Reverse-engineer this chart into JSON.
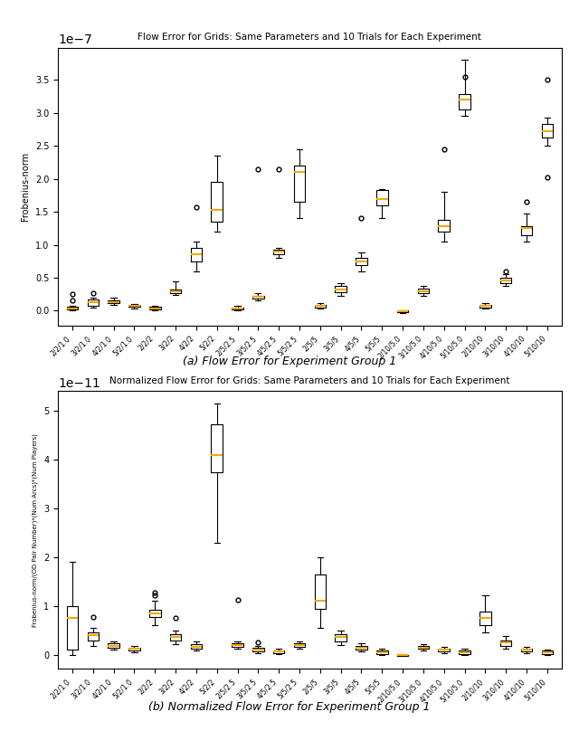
{
  "title1": "Flow Error for Grids: Same Parameters and 10 Trials for Each Experiment",
  "title2": "Normalized Flow Error for Grids: Same Parameters and 10 Trials for Each Experiment",
  "ylabel1": "Frobenius-norm",
  "ylabel2": "Frobenius-norm/(OD Pair Number)*(Num Arcs)*(Num Players)",
  "caption1": "(a) Flow Error for Experiment Group 1",
  "caption2": "(b) Normalized Flow Error for Experiment Group 1",
  "scale1": 1e-07,
  "scale2": 1e-11,
  "xlabels": [
    "2/2/1.0",
    "3/2/1.0",
    "4/2/1.0",
    "5/2/1.0",
    "2/2/2",
    "3/2/2",
    "4/2/2",
    "5/2/2",
    "2/5/2.5",
    "3/5/2.5",
    "4/5/2.5",
    "5/5/2.5",
    "2/5/5",
    "3/5/5",
    "4/5/5",
    "5/5/5",
    "2/10/5.0",
    "3/10/5.0",
    "4/10/5.0",
    "5/10/5.0",
    "2/10/10",
    "3/10/10",
    "4/10/10",
    "5/10/10"
  ],
  "plot1_data": [
    {
      "med": 0.03,
      "q1": 0.02,
      "q3": 0.06,
      "whislo": 0.01,
      "whishi": 0.08,
      "fliers": [
        0.15,
        0.25
      ]
    },
    {
      "med": 0.13,
      "q1": 0.08,
      "q3": 0.17,
      "whislo": 0.05,
      "whishi": 0.2,
      "fliers": [
        0.27
      ]
    },
    {
      "med": 0.13,
      "q1": 0.11,
      "q3": 0.15,
      "whislo": 0.09,
      "whishi": 0.2,
      "fliers": []
    },
    {
      "med": 0.07,
      "q1": 0.06,
      "q3": 0.08,
      "whislo": 0.04,
      "whishi": 0.1,
      "fliers": []
    },
    {
      "med": 0.04,
      "q1": 0.02,
      "q3": 0.06,
      "whislo": 0.01,
      "whishi": 0.08,
      "fliers": []
    },
    {
      "med": 0.29,
      "q1": 0.27,
      "q3": 0.32,
      "whislo": 0.24,
      "whishi": 0.45,
      "fliers": []
    },
    {
      "med": 0.85,
      "q1": 0.75,
      "q3": 0.95,
      "whislo": 0.6,
      "whishi": 1.05,
      "fliers": [
        1.57
      ]
    },
    {
      "med": 1.53,
      "q1": 1.35,
      "q3": 1.95,
      "whislo": 1.2,
      "whishi": 2.35,
      "fliers": []
    },
    {
      "med": 0.04,
      "q1": 0.02,
      "q3": 0.05,
      "whislo": 0.01,
      "whishi": 0.07,
      "fliers": []
    },
    {
      "med": 0.21,
      "q1": 0.19,
      "q3": 0.23,
      "whislo": 0.15,
      "whishi": 0.27,
      "fliers": [
        2.15
      ]
    },
    {
      "med": 0.9,
      "q1": 0.85,
      "q3": 0.93,
      "whislo": 0.8,
      "whishi": 0.95,
      "fliers": [
        2.15
      ]
    },
    {
      "med": 2.1,
      "q1": 1.65,
      "q3": 2.2,
      "whislo": 1.4,
      "whishi": 2.45,
      "fliers": []
    },
    {
      "med": 0.07,
      "q1": 0.05,
      "q3": 0.09,
      "whislo": 0.03,
      "whishi": 0.11,
      "fliers": []
    },
    {
      "med": 0.32,
      "q1": 0.28,
      "q3": 0.37,
      "whislo": 0.22,
      "whishi": 0.42,
      "fliers": []
    },
    {
      "med": 0.75,
      "q1": 0.69,
      "q3": 0.8,
      "whislo": 0.6,
      "whishi": 0.88,
      "fliers": [
        1.4
      ]
    },
    {
      "med": 1.7,
      "q1": 1.6,
      "q3": 1.83,
      "whislo": 1.4,
      "whishi": 1.85,
      "fliers": []
    },
    {
      "med": -0.01,
      "q1": -0.02,
      "q3": 0.0,
      "whislo": -0.03,
      "whishi": 0.01,
      "fliers": []
    },
    {
      "med": 0.3,
      "q1": 0.27,
      "q3": 0.33,
      "whislo": 0.23,
      "whishi": 0.37,
      "fliers": []
    },
    {
      "med": 1.28,
      "q1": 1.2,
      "q3": 1.38,
      "whislo": 1.05,
      "whishi": 1.8,
      "fliers": [
        2.45
      ]
    },
    {
      "med": 3.2,
      "q1": 3.05,
      "q3": 3.28,
      "whislo": 2.95,
      "whishi": 3.8,
      "fliers": [
        3.55
      ]
    },
    {
      "med": 0.07,
      "q1": 0.05,
      "q3": 0.09,
      "whislo": 0.03,
      "whishi": 0.11,
      "fliers": []
    },
    {
      "med": 0.46,
      "q1": 0.42,
      "q3": 0.5,
      "whislo": 0.37,
      "whishi": 0.55,
      "fliers": [
        0.6
      ]
    },
    {
      "med": 1.25,
      "q1": 1.15,
      "q3": 1.28,
      "whislo": 1.05,
      "whishi": 1.48,
      "fliers": [
        1.65
      ]
    },
    {
      "med": 2.72,
      "q1": 2.62,
      "q3": 2.83,
      "whislo": 2.5,
      "whishi": 2.93,
      "fliers": [
        3.5,
        2.02
      ]
    }
  ],
  "plot2_data": [
    {
      "med": 0.75,
      "q1": 0.1,
      "q3": 1.0,
      "whislo": 0.0,
      "whishi": 1.9,
      "fliers": []
    },
    {
      "med": 0.4,
      "q1": 0.3,
      "q3": 0.45,
      "whislo": 0.18,
      "whishi": 0.55,
      "fliers": [
        0.78
      ]
    },
    {
      "med": 0.18,
      "q1": 0.14,
      "q3": 0.23,
      "whislo": 0.1,
      "whishi": 0.28,
      "fliers": []
    },
    {
      "med": 0.12,
      "q1": 0.09,
      "q3": 0.15,
      "whislo": 0.06,
      "whishi": 0.18,
      "fliers": []
    },
    {
      "med": 0.85,
      "q1": 0.78,
      "q3": 0.93,
      "whislo": 0.6,
      "whishi": 1.1,
      "fliers": [
        1.22,
        1.28
      ]
    },
    {
      "med": 0.37,
      "q1": 0.3,
      "q3": 0.42,
      "whislo": 0.22,
      "whishi": 0.5,
      "fliers": [
        0.75
      ]
    },
    {
      "med": 0.17,
      "q1": 0.13,
      "q3": 0.22,
      "whislo": 0.08,
      "whishi": 0.28,
      "fliers": []
    },
    {
      "med": 4.1,
      "q1": 3.75,
      "q3": 4.72,
      "whislo": 2.3,
      "whishi": 5.15,
      "fliers": []
    },
    {
      "med": 0.2,
      "q1": 0.17,
      "q3": 0.24,
      "whislo": 0.12,
      "whishi": 0.28,
      "fliers": [
        1.12
      ]
    },
    {
      "med": 0.1,
      "q1": 0.07,
      "q3": 0.14,
      "whislo": 0.04,
      "whishi": 0.18,
      "fliers": [
        0.25
      ]
    },
    {
      "med": 0.07,
      "q1": 0.04,
      "q3": 0.09,
      "whislo": 0.02,
      "whishi": 0.12,
      "fliers": []
    },
    {
      "med": 0.2,
      "q1": 0.17,
      "q3": 0.23,
      "whislo": 0.13,
      "whishi": 0.27,
      "fliers": []
    },
    {
      "med": 1.1,
      "q1": 0.95,
      "q3": 1.65,
      "whislo": 0.55,
      "whishi": 2.0,
      "fliers": []
    },
    {
      "med": 0.37,
      "q1": 0.28,
      "q3": 0.42,
      "whislo": 0.2,
      "whishi": 0.5,
      "fliers": []
    },
    {
      "med": 0.15,
      "q1": 0.11,
      "q3": 0.19,
      "whislo": 0.07,
      "whishi": 0.23,
      "fliers": []
    },
    {
      "med": 0.05,
      "q1": 0.02,
      "q3": 0.08,
      "whislo": 0.0,
      "whishi": 0.12,
      "fliers": []
    },
    {
      "med": -0.01,
      "q1": -0.02,
      "q3": 0.0,
      "whislo": -0.03,
      "whishi": 0.01,
      "fliers": []
    },
    {
      "med": 0.15,
      "q1": 0.12,
      "q3": 0.18,
      "whislo": 0.08,
      "whishi": 0.22,
      "fliers": []
    },
    {
      "med": 0.1,
      "q1": 0.07,
      "q3": 0.13,
      "whislo": 0.04,
      "whishi": 0.17,
      "fliers": []
    },
    {
      "med": 0.05,
      "q1": 0.02,
      "q3": 0.08,
      "whislo": 0.0,
      "whishi": 0.12,
      "fliers": []
    },
    {
      "med": 0.75,
      "q1": 0.6,
      "q3": 0.88,
      "whislo": 0.45,
      "whishi": 1.22,
      "fliers": []
    },
    {
      "med": 0.25,
      "q1": 0.18,
      "q3": 0.3,
      "whislo": 0.12,
      "whishi": 0.38,
      "fliers": []
    },
    {
      "med": 0.1,
      "q1": 0.07,
      "q3": 0.13,
      "whislo": 0.04,
      "whishi": 0.17,
      "fliers": []
    },
    {
      "med": 0.05,
      "q1": 0.02,
      "q3": 0.08,
      "whislo": 0.0,
      "whishi": 0.11,
      "fliers": []
    }
  ],
  "background_color": "white"
}
